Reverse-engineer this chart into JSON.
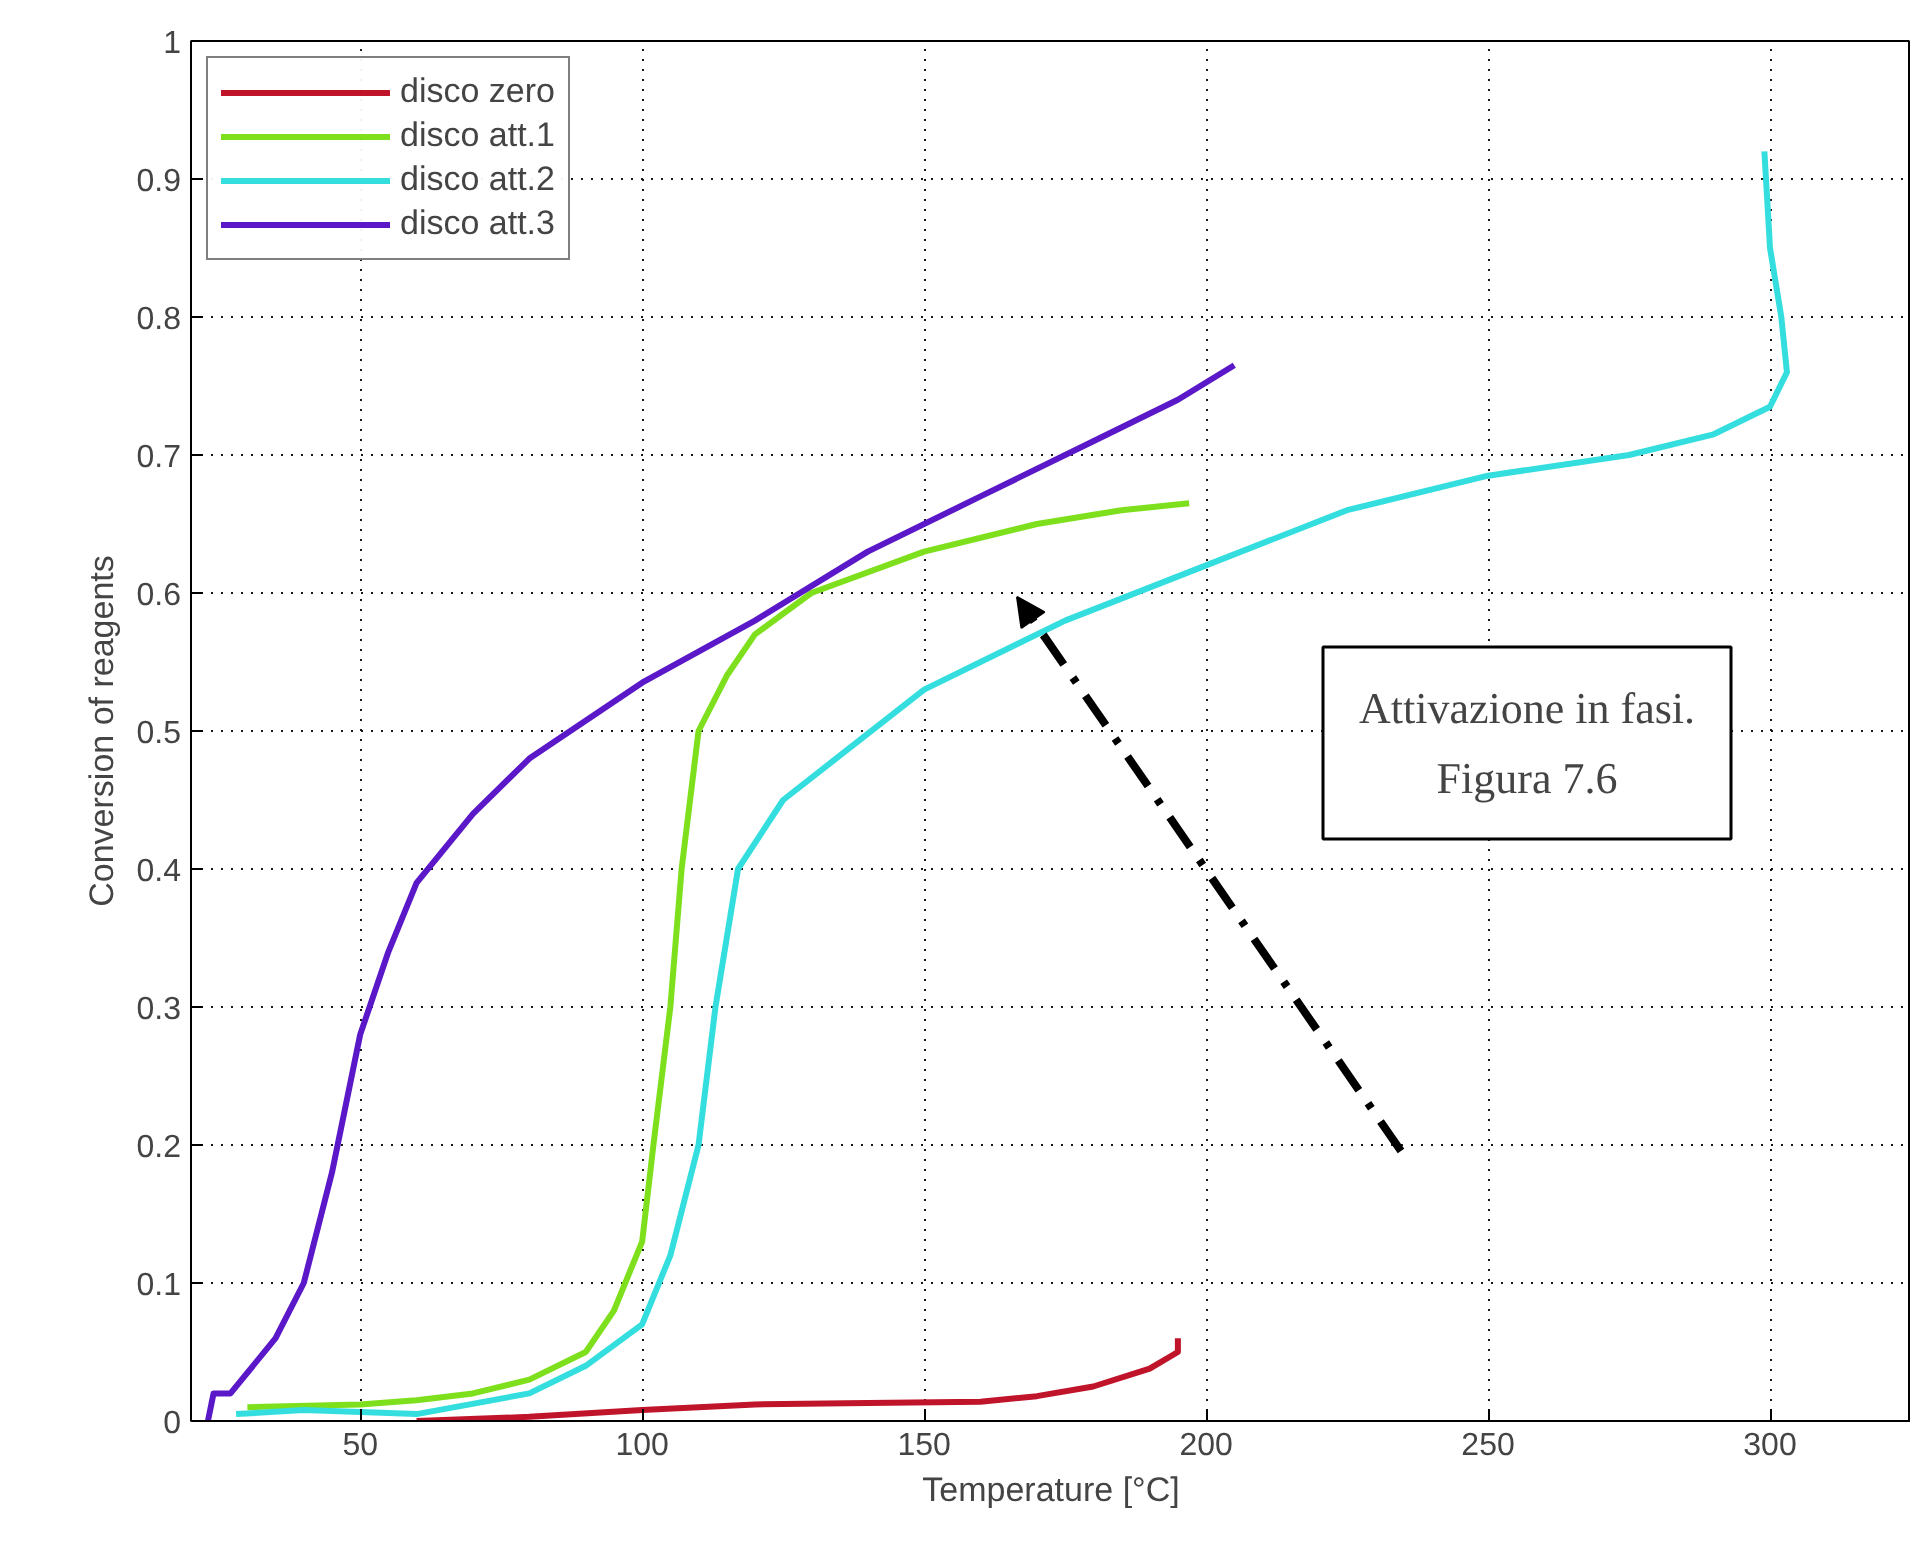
{
  "chart_data": {
    "type": "line",
    "xlabel": "Temperature [°C]",
    "ylabel": "Conversion of reagents",
    "xlim": [
      20,
      325
    ],
    "ylim": [
      0,
      1
    ],
    "xticks": [
      50,
      100,
      150,
      200,
      250,
      300
    ],
    "yticks": [
      0,
      0.1,
      0.2,
      0.3,
      0.4,
      0.5,
      0.6,
      0.7,
      0.8,
      0.9,
      1
    ],
    "grid": true,
    "legend": "top left",
    "line_style": "solid",
    "annotations": [
      "Attivazione in fasi.\nFigura 7.6"
    ],
    "series": [
      {
        "name": "disco zero",
        "color": "#c0142a",
        "x": [
          60,
          80,
          100,
          120,
          140,
          160,
          170,
          180,
          190,
          195,
          195
        ],
        "values": [
          0,
          0.003,
          0.008,
          0.012,
          0.013,
          0.014,
          0.018,
          0.025,
          0.038,
          0.05,
          0.06
        ]
      },
      {
        "name": "disco att.1",
        "color": "#7ee01c",
        "x": [
          30,
          50,
          60,
          70,
          80,
          90,
          95,
          100,
          102,
          105,
          107,
          110,
          115,
          120,
          130,
          150,
          170,
          185,
          197
        ],
        "values": [
          0.01,
          0.012,
          0.015,
          0.02,
          0.03,
          0.05,
          0.08,
          0.13,
          0.2,
          0.3,
          0.4,
          0.5,
          0.54,
          0.57,
          0.6,
          0.63,
          0.65,
          0.66,
          0.665
        ]
      },
      {
        "name": "disco att.2",
        "color": "#34dede",
        "x": [
          28,
          40,
          60,
          80,
          90,
          100,
          105,
          110,
          113,
          117,
          125,
          150,
          175,
          200,
          225,
          250,
          275,
          290,
          300,
          303,
          302,
          300,
          299
        ],
        "values": [
          0.005,
          0.008,
          0.005,
          0.02,
          0.04,
          0.07,
          0.12,
          0.2,
          0.3,
          0.4,
          0.45,
          0.53,
          0.58,
          0.62,
          0.66,
          0.685,
          0.7,
          0.715,
          0.735,
          0.76,
          0.8,
          0.85,
          0.92
        ]
      },
      {
        "name": "disco att.3",
        "color": "#5a18c8",
        "x": [
          23,
          24,
          27,
          35,
          40,
          45,
          50,
          55,
          60,
          70,
          80,
          100,
          120,
          140,
          160,
          180,
          195,
          205
        ],
        "values": [
          0,
          0.02,
          0.02,
          0.06,
          0.1,
          0.18,
          0.28,
          0.34,
          0.39,
          0.44,
          0.48,
          0.535,
          0.58,
          0.63,
          0.67,
          0.71,
          0.74,
          0.765
        ]
      }
    ]
  }
}
